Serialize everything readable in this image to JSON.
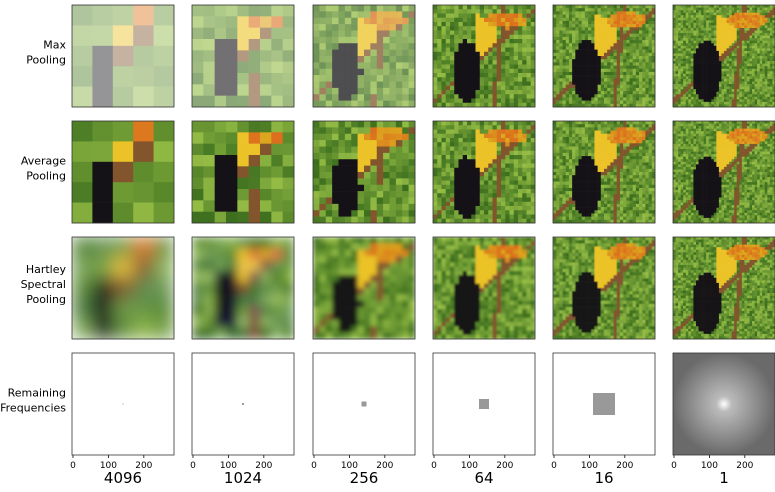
{
  "rows": [
    {
      "label": [
        "Max",
        "Pooling"
      ]
    },
    {
      "label": [
        "Average",
        "Pooling"
      ]
    },
    {
      "label": [
        "Hartley",
        "Spectral",
        "Pooling"
      ]
    },
    {
      "label": [
        "Remaining",
        "Frequencies"
      ]
    }
  ],
  "columns": [
    "4096",
    "1024",
    "256",
    "64",
    "16",
    "1"
  ],
  "axis_ticks": [
    "0",
    "100",
    "200"
  ]
}
